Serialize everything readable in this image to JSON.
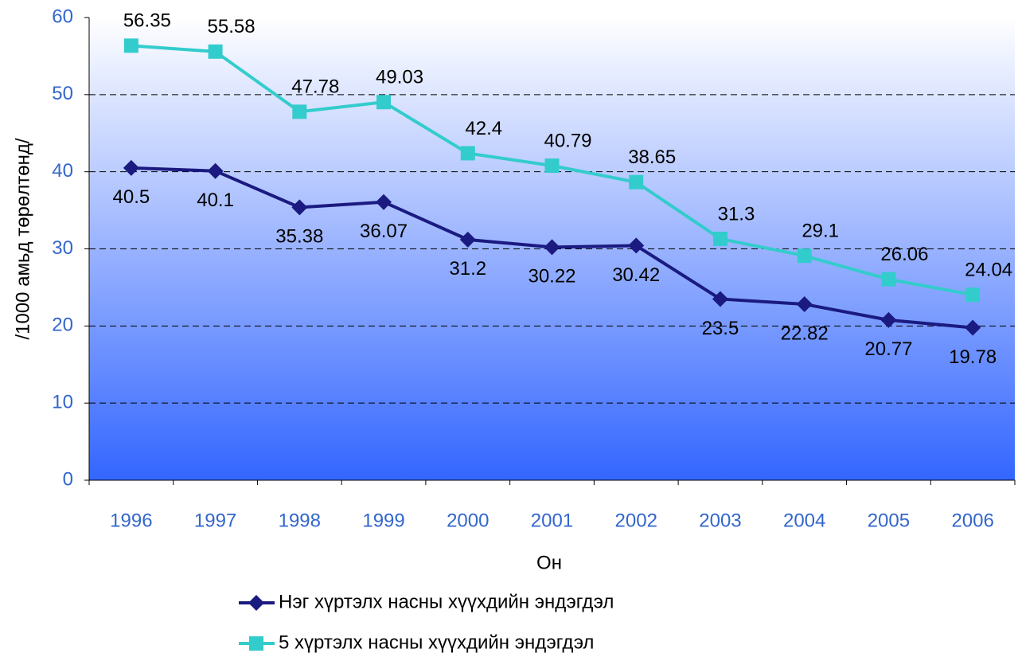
{
  "chart_data": {
    "type": "line",
    "x_label": "Он",
    "y_label": "/1000 амьд төрөлтөнд/",
    "categories": [
      "1996",
      "1997",
      "1998",
      "1999",
      "2000",
      "2001",
      "2002",
      "2003",
      "2004",
      "2005",
      "2006"
    ],
    "series": [
      {
        "name": "Нэг хүртэлх насны хүүхдийн эндэгдэл",
        "color": "#1a1a80",
        "marker": "diamond",
        "values": [
          40.5,
          40.1,
          35.38,
          36.07,
          31.2,
          30.22,
          30.42,
          23.5,
          22.82,
          20.77,
          19.78
        ]
      },
      {
        "name": "5 хүртэлх насны хүүхдийн эндэгдэл",
        "color": "#33cccc",
        "marker": "square",
        "values": [
          56.35,
          55.58,
          47.78,
          49.03,
          42.4,
          40.79,
          38.65,
          31.3,
          29.1,
          26.06,
          24.04
        ]
      }
    ],
    "ylim": [
      0,
      60
    ],
    "yticks": [
      0,
      10,
      20,
      30,
      40,
      50,
      60
    ],
    "grid": true,
    "legend": "bottom"
  }
}
